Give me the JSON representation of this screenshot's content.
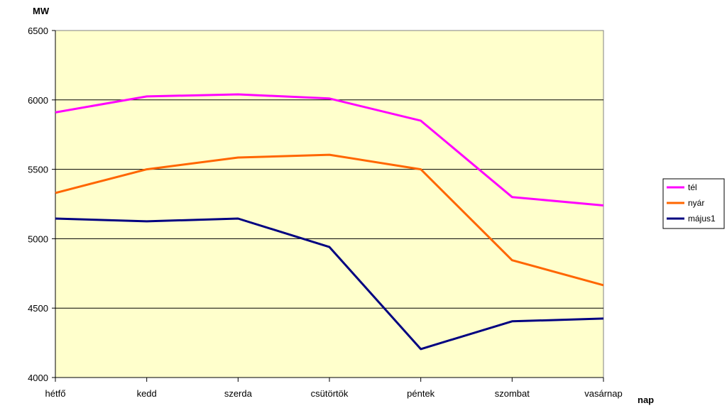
{
  "chart_data": {
    "type": "line",
    "title": "",
    "ylabel": "MW",
    "xlabel": "nap",
    "categories": [
      "hétfő",
      "kedd",
      "szerda",
      "csütörtök",
      "péntek",
      "szombat",
      "vasárnap"
    ],
    "ylim": [
      4000,
      6500
    ],
    "yticks": [
      4000,
      4500,
      5000,
      5500,
      6000,
      6500
    ],
    "grid": true,
    "legend_position": "right",
    "plot_background": "#FFFFCC",
    "series": [
      {
        "name": "tél",
        "color": "#FF00FF",
        "values": [
          5910,
          6025,
          6040,
          6010,
          5850,
          5300,
          5240
        ]
      },
      {
        "name": "nyár",
        "color": "#FF6600",
        "values": [
          5330,
          5500,
          5585,
          5605,
          5500,
          4845,
          4665
        ]
      },
      {
        "name": "május1",
        "color": "#000080",
        "values": [
          5145,
          5125,
          5145,
          4940,
          4205,
          4405,
          4425
        ]
      }
    ]
  }
}
